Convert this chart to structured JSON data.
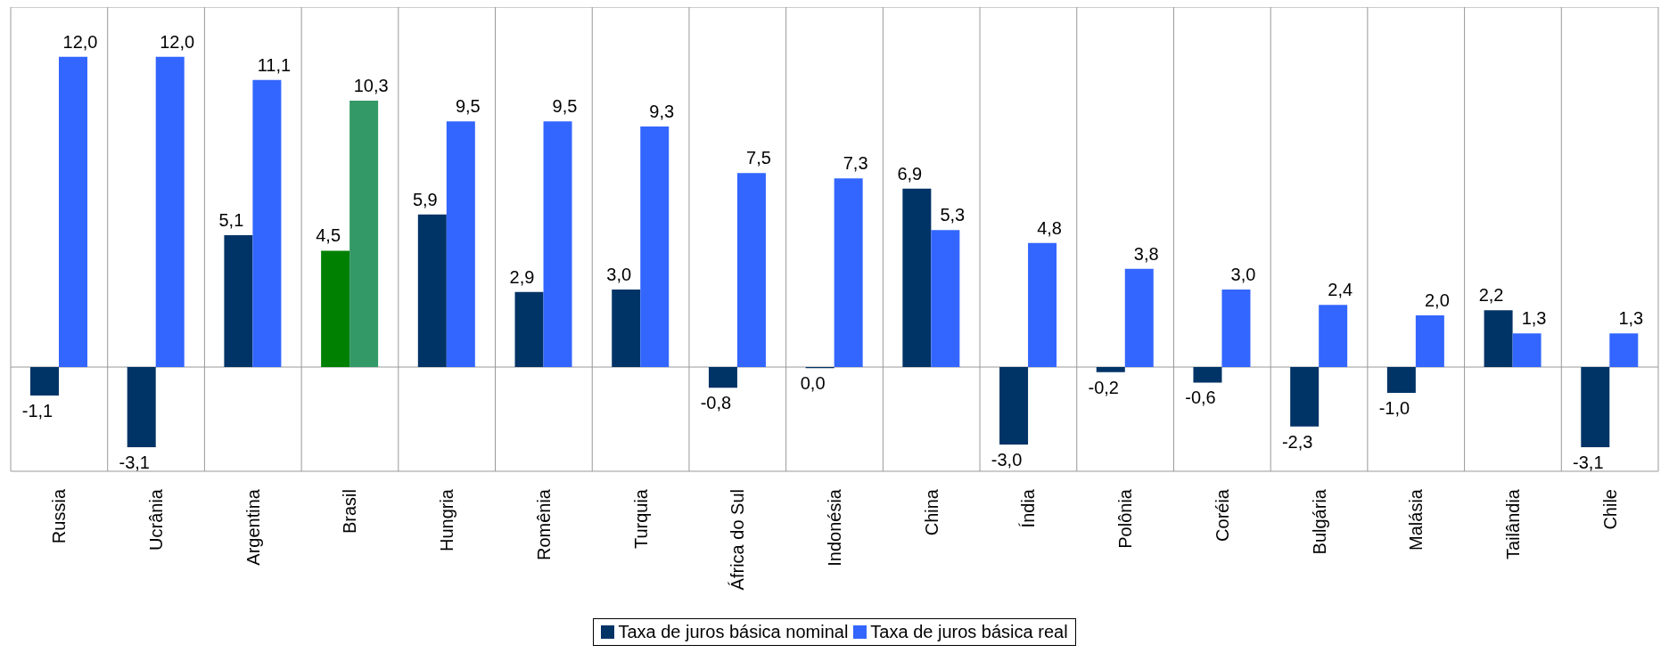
{
  "chart_data": {
    "type": "bar",
    "relative": false,
    "categories": [
      "Russia",
      "Ucrânia",
      "Argentina",
      "Brasil",
      "Hungria",
      "Romênia",
      "Turquia",
      "África do Sul",
      "Indonésia",
      "China",
      "Índia",
      "Polônia",
      "Coréia",
      "Bulgária",
      "Malásia",
      "Tailândia",
      "Chile"
    ],
    "series": [
      {
        "name": "Taxa de juros básica nominal",
        "color": "#003366",
        "colors": [
          "#003366",
          "#003366",
          "#003366",
          "#008000",
          "#003366",
          "#003366",
          "#003366",
          "#003366",
          "#003366",
          "#003366",
          "#003366",
          "#003366",
          "#003366",
          "#003366",
          "#003366",
          "#003366",
          "#003366"
        ],
        "values": [
          -1.1,
          -3.1,
          5.1,
          4.5,
          5.9,
          2.9,
          3.0,
          -0.8,
          -0.04,
          6.9,
          -3.0,
          -0.2,
          -0.6,
          -2.3,
          -1.0,
          2.2,
          -3.1
        ],
        "value_labels": [
          "-1,1",
          "-3,1",
          "5,1",
          "4,5",
          "5,9",
          "2,9",
          "3,0",
          "-0,8",
          "0,0",
          "6,9",
          "-3,0",
          "-0,2",
          "-0,6",
          "-2,3",
          "-1,0",
          "2,2",
          "-3,1"
        ]
      },
      {
        "name": "Taxa de juros básica real",
        "color": "#3366ff",
        "colors": [
          "#3366ff",
          "#3366ff",
          "#3366ff",
          "#339966",
          "#3366ff",
          "#3366ff",
          "#3366ff",
          "#3366ff",
          "#3366ff",
          "#3366ff",
          "#3366ff",
          "#3366ff",
          "#3366ff",
          "#3366ff",
          "#3366ff",
          "#3366ff",
          "#3366ff"
        ],
        "values": [
          12.0,
          12.0,
          11.1,
          10.3,
          9.5,
          9.5,
          9.3,
          7.5,
          7.3,
          5.3,
          4.8,
          3.8,
          3.0,
          2.4,
          2.0,
          1.3,
          1.3
        ],
        "value_labels": [
          "12,0",
          "12,0",
          "11,1",
          "10,3",
          "9,5",
          "9,5",
          "9,3",
          "7,5",
          "7,3",
          "5,3",
          "4,8",
          "3,8",
          "3,0",
          "2,4",
          "2,0",
          "1,3",
          "1,3"
        ]
      }
    ],
    "grid": "x",
    "legend": "bottom"
  }
}
